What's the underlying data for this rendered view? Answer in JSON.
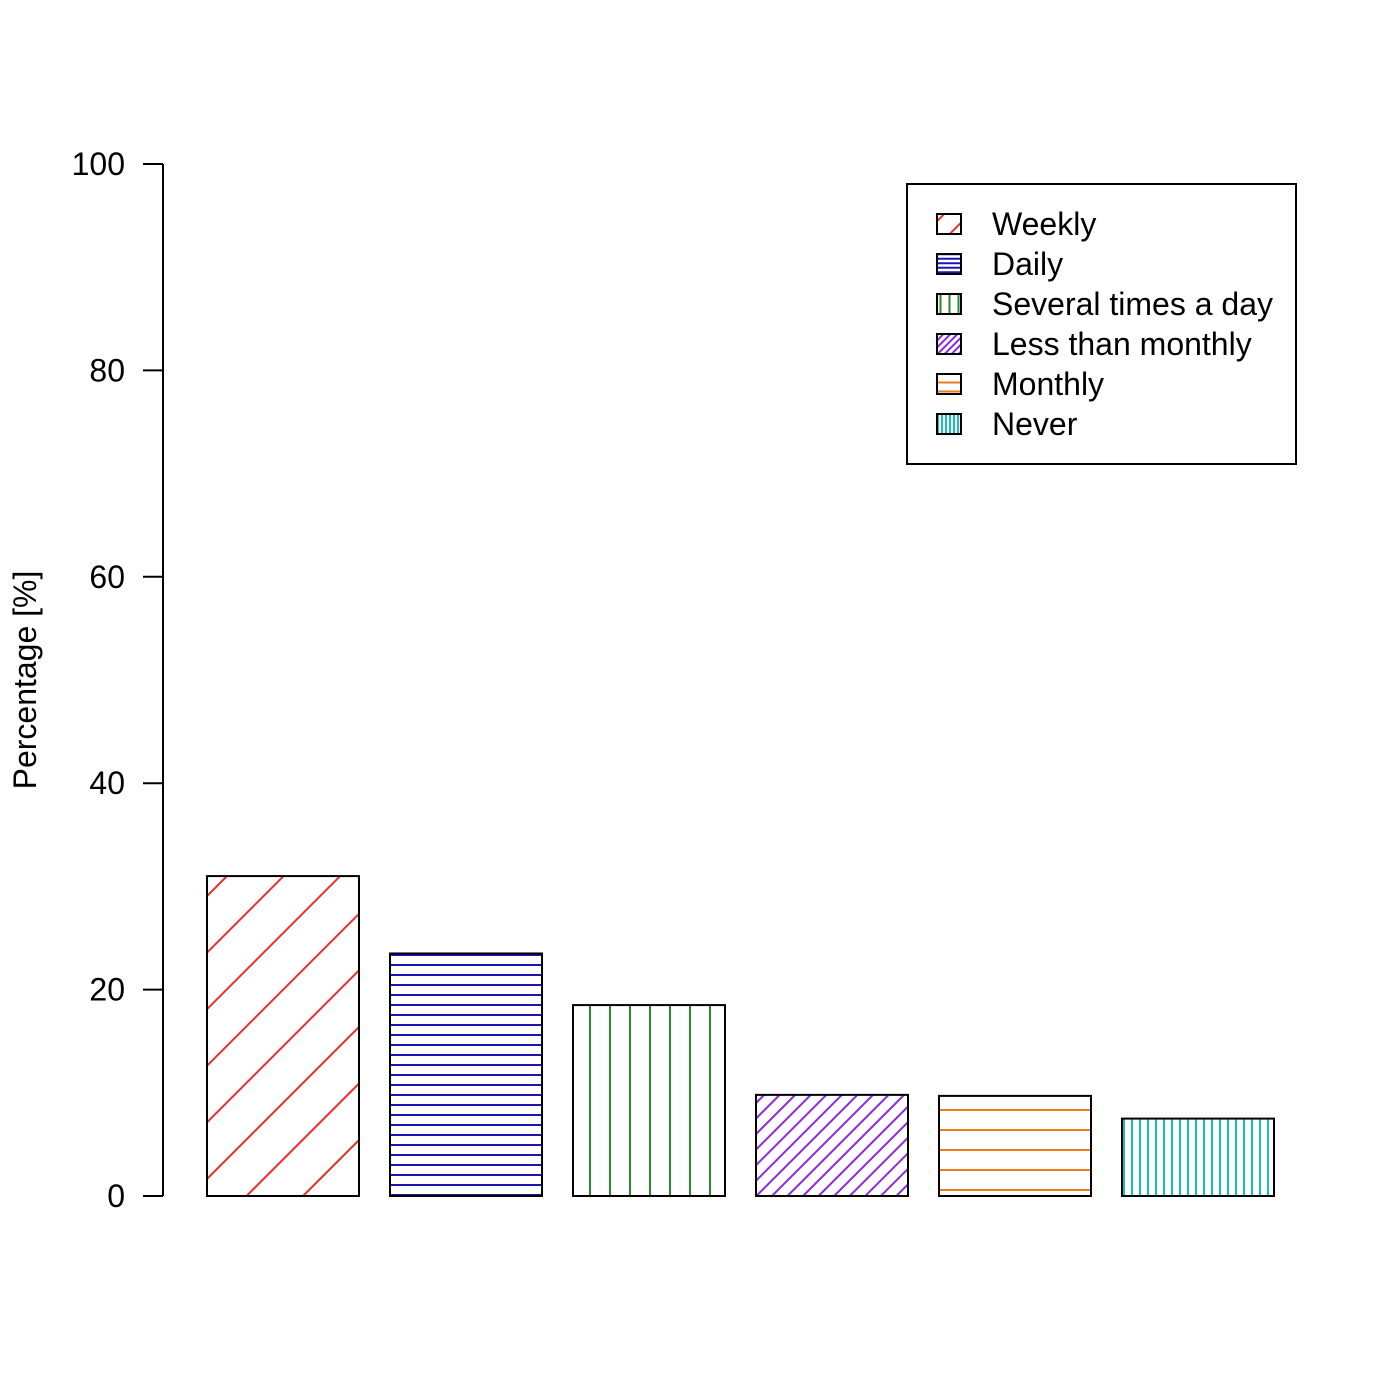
{
  "chart_data": {
    "type": "bar",
    "title": "",
    "xlabel": "",
    "ylabel": "Percentage [%]",
    "ylim": [
      0,
      100
    ],
    "yticks": [
      0,
      20,
      40,
      60,
      80,
      100
    ],
    "grid": false,
    "legend_position": "top-right",
    "categories": [
      "Weekly",
      "Daily",
      "Several times a day",
      "Less than monthly",
      "Monthly",
      "Never"
    ],
    "values": [
      31,
      23.5,
      18.5,
      9.8,
      9.7,
      7.5
    ],
    "colors": [
      "#e8302a",
      "#1c14b0",
      "#2a8a2a",
      "#8a2be2",
      "#e87d1a",
      "#17bfc4"
    ],
    "patterns": [
      "diagonal-sparse",
      "horizontal-dense",
      "vertical-sparse",
      "diagonal-dense",
      "horizontal-sparse",
      "vertical-dense"
    ]
  }
}
